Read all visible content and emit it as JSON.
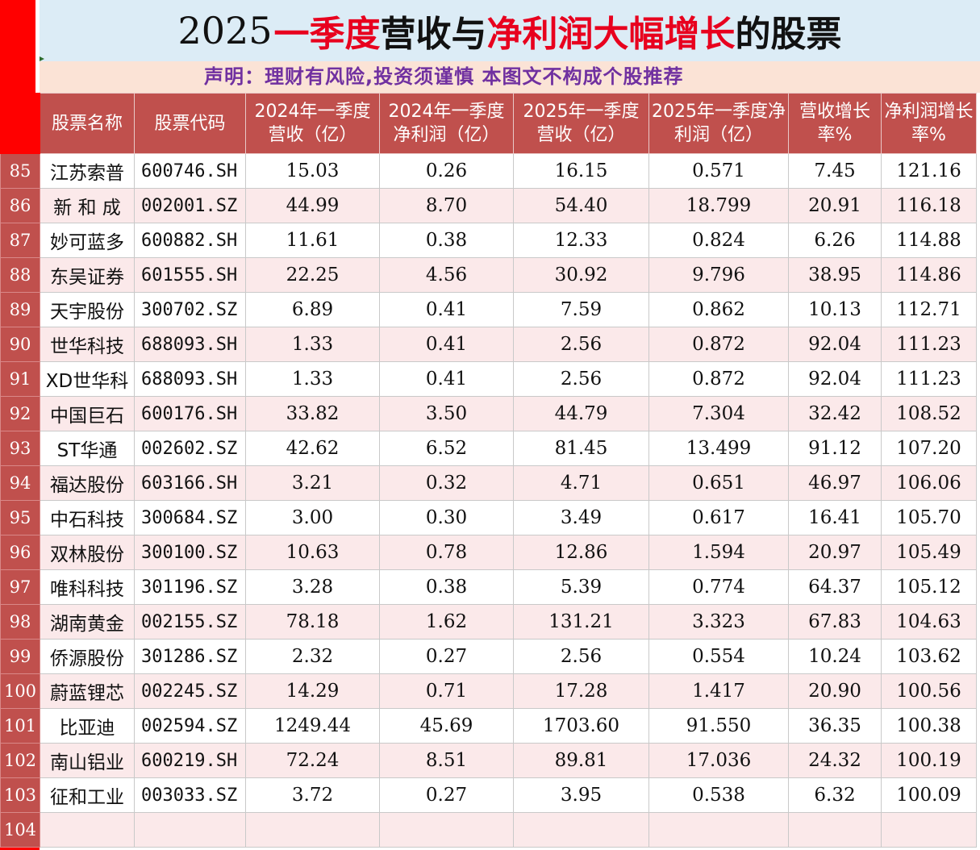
{
  "title": {
    "year": "2025",
    "part1": "一季度",
    "part2": "营收与",
    "part3": "净利润大幅增长",
    "part4": "的股票"
  },
  "notice": "声明：理财有风险,投资须谨慎 本图文不构成个股推荐",
  "colors": {
    "header_bg": "#c0504d",
    "row_alt": "#fbe9ea",
    "title_red": "#e8001e",
    "notice_purple": "#7030a0",
    "rownum_red": "#ff0000"
  },
  "columns": [
    "股票名称",
    "股票代码",
    "2024年一季度营收（亿）",
    "2024年一季度净利润（亿）",
    "2025年一季度营收（亿）",
    "2025年一季度净利润（亿）",
    "营收增长率%",
    "净利润增长率%"
  ],
  "rows": [
    {
      "num": "85",
      "name": "江苏索普",
      "code": "600746.SH",
      "rev24": "15.03",
      "np24": "0.26",
      "rev25": "16.15",
      "np25": "0.571",
      "rev_growth": "7.45",
      "np_growth": "121.16"
    },
    {
      "num": "86",
      "name": "新 和 成",
      "code": "002001.SZ",
      "rev24": "44.99",
      "np24": "8.70",
      "rev25": "54.40",
      "np25": "18.799",
      "rev_growth": "20.91",
      "np_growth": "116.18"
    },
    {
      "num": "87",
      "name": "妙可蓝多",
      "code": "600882.SH",
      "rev24": "11.61",
      "np24": "0.38",
      "rev25": "12.33",
      "np25": "0.824",
      "rev_growth": "6.26",
      "np_growth": "114.88"
    },
    {
      "num": "88",
      "name": "东吴证券",
      "code": "601555.SH",
      "rev24": "22.25",
      "np24": "4.56",
      "rev25": "30.92",
      "np25": "9.796",
      "rev_growth": "38.95",
      "np_growth": "114.86"
    },
    {
      "num": "89",
      "name": "天宇股份",
      "code": "300702.SZ",
      "rev24": "6.89",
      "np24": "0.41",
      "rev25": "7.59",
      "np25": "0.862",
      "rev_growth": "10.13",
      "np_growth": "112.71"
    },
    {
      "num": "90",
      "name": "世华科技",
      "code": "688093.SH",
      "rev24": "1.33",
      "np24": "0.41",
      "rev25": "2.56",
      "np25": "0.872",
      "rev_growth": "92.04",
      "np_growth": "111.23"
    },
    {
      "num": "91",
      "name": "XD世华科",
      "code": "688093.SH",
      "rev24": "1.33",
      "np24": "0.41",
      "rev25": "2.56",
      "np25": "0.872",
      "rev_growth": "92.04",
      "np_growth": "111.23"
    },
    {
      "num": "92",
      "name": "中国巨石",
      "code": "600176.SH",
      "rev24": "33.82",
      "np24": "3.50",
      "rev25": "44.79",
      "np25": "7.304",
      "rev_growth": "32.42",
      "np_growth": "108.52"
    },
    {
      "num": "93",
      "name": "ST华通",
      "code": "002602.SZ",
      "rev24": "42.62",
      "np24": "6.52",
      "rev25": "81.45",
      "np25": "13.499",
      "rev_growth": "91.12",
      "np_growth": "107.20"
    },
    {
      "num": "94",
      "name": "福达股份",
      "code": "603166.SH",
      "rev24": "3.21",
      "np24": "0.32",
      "rev25": "4.71",
      "np25": "0.651",
      "rev_growth": "46.97",
      "np_growth": "106.06"
    },
    {
      "num": "95",
      "name": "中石科技",
      "code": "300684.SZ",
      "rev24": "3.00",
      "np24": "0.30",
      "rev25": "3.49",
      "np25": "0.617",
      "rev_growth": "16.41",
      "np_growth": "105.70"
    },
    {
      "num": "96",
      "name": "双林股份",
      "code": "300100.SZ",
      "rev24": "10.63",
      "np24": "0.78",
      "rev25": "12.86",
      "np25": "1.594",
      "rev_growth": "20.97",
      "np_growth": "105.49"
    },
    {
      "num": "97",
      "name": "唯科科技",
      "code": "301196.SZ",
      "rev24": "3.28",
      "np24": "0.38",
      "rev25": "5.39",
      "np25": "0.774",
      "rev_growth": "64.37",
      "np_growth": "105.12"
    },
    {
      "num": "98",
      "name": "湖南黄金",
      "code": "002155.SZ",
      "rev24": "78.18",
      "np24": "1.62",
      "rev25": "131.21",
      "np25": "3.323",
      "rev_growth": "67.83",
      "np_growth": "104.63"
    },
    {
      "num": "99",
      "name": "侨源股份",
      "code": "301286.SZ",
      "rev24": "2.32",
      "np24": "0.27",
      "rev25": "2.56",
      "np25": "0.554",
      "rev_growth": "10.24",
      "np_growth": "103.62"
    },
    {
      "num": "100",
      "name": "蔚蓝锂芯",
      "code": "002245.SZ",
      "rev24": "14.29",
      "np24": "0.71",
      "rev25": "17.28",
      "np25": "1.417",
      "rev_growth": "20.90",
      "np_growth": "100.56"
    },
    {
      "num": "101",
      "name": "比亚迪",
      "code": "002594.SZ",
      "rev24": "1249.44",
      "np24": "45.69",
      "rev25": "1703.60",
      "np25": "91.550",
      "rev_growth": "36.35",
      "np_growth": "100.38"
    },
    {
      "num": "102",
      "name": "南山铝业",
      "code": "600219.SH",
      "rev24": "72.24",
      "np24": "8.51",
      "rev25": "89.81",
      "np25": "17.036",
      "rev_growth": "24.32",
      "np_growth": "100.19"
    },
    {
      "num": "103",
      "name": "征和工业",
      "code": "003033.SZ",
      "rev24": "3.72",
      "np24": "0.27",
      "rev25": "3.95",
      "np25": "0.538",
      "rev_growth": "6.32",
      "np_growth": "100.09"
    },
    {
      "num": "104",
      "name": "",
      "code": "",
      "rev24": "",
      "np24": "",
      "rev25": "",
      "np25": "",
      "rev_growth": "",
      "np_growth": ""
    }
  ]
}
